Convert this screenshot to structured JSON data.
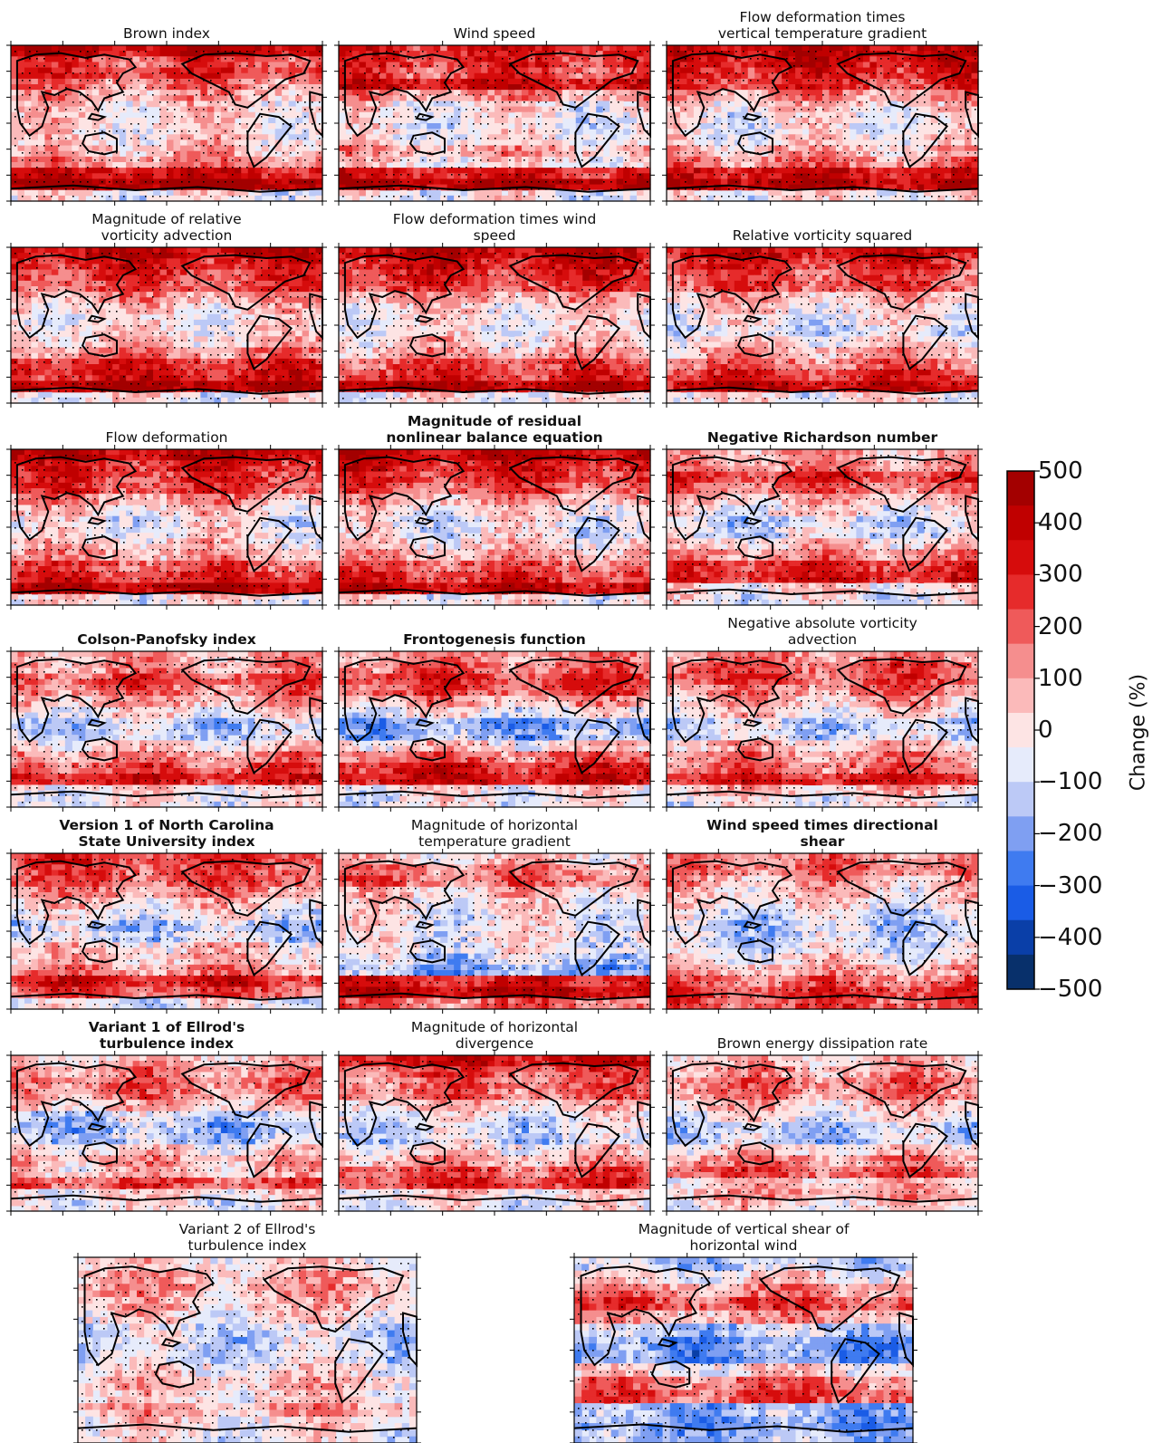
{
  "chart_data": {
    "type": "heatmap",
    "kind": "global map panels of percentage change",
    "colorbar": {
      "label": "Change (%)",
      "ticks": [
        "500",
        "400",
        "300",
        "200",
        "100",
        "0",
        "−100",
        "−200",
        "−300",
        "−400",
        "−500"
      ],
      "range": [
        -500,
        500
      ],
      "colors": [
        "#08306b",
        "#0a3fa8",
        "#1a5ce6",
        "#3f7bf0",
        "#7f9ff2",
        "#bcc9f6",
        "#e6ebfb",
        "#fde4e4",
        "#fbbaba",
        "#f58e8e",
        "#ef5a5a",
        "#e62b2b",
        "#d60c0c",
        "#c00000",
        "#a30000"
      ]
    },
    "panels": [
      {
        "title_lines": [
          "Brown index"
        ],
        "bold": false,
        "profile": [
          2,
          1.2,
          1.4,
          0.9,
          0.6,
          0.3,
          0.2,
          0.2,
          0.3,
          0.5,
          0.8,
          1.8,
          2.4,
          0.1
        ]
      },
      {
        "title_lines": [
          "Wind speed"
        ],
        "bold": false,
        "profile": [
          1.6,
          1.4,
          1.2,
          1.8,
          0.7,
          0.1,
          0,
          0,
          0.1,
          0.6,
          0.2,
          1.6,
          2.2,
          0
        ]
      },
      {
        "title_lines": [
          "Flow deformation times",
          "vertical temperature gradient"
        ],
        "bold": false,
        "profile": [
          2,
          1.8,
          1.6,
          1.4,
          0.8,
          0.3,
          0.1,
          0,
          0.2,
          0.5,
          0.9,
          1.8,
          2.2,
          0.1
        ]
      },
      {
        "title_lines": [
          "Magnitude of relative",
          "vorticity advection"
        ],
        "bold": false,
        "profile": [
          2,
          1.6,
          1.4,
          1.2,
          0.7,
          0.3,
          0.1,
          0.2,
          0.4,
          0.8,
          1.5,
          1.6,
          2.2,
          0.1
        ]
      },
      {
        "title_lines": [
          "Flow deformation times wind",
          "speed"
        ],
        "bold": false,
        "profile": [
          2,
          1.7,
          1.5,
          1.3,
          0.7,
          0.2,
          0.1,
          0.1,
          0.3,
          0.6,
          1.2,
          1.4,
          2.2,
          0.1
        ]
      },
      {
        "title_lines": [
          "Relative vorticity squared"
        ],
        "bold": false,
        "profile": [
          1.8,
          1.5,
          1.2,
          1.2,
          0.5,
          0.2,
          0,
          -0.2,
          0.2,
          0.6,
          1.0,
          1.4,
          2.0,
          0.1
        ]
      },
      {
        "title_lines": [
          "Flow deformation"
        ],
        "bold": false,
        "profile": [
          2,
          1.6,
          1.4,
          1.3,
          0.7,
          0.3,
          0,
          0.1,
          0.3,
          0.6,
          1.2,
          1.5,
          2.2,
          0.1
        ]
      },
      {
        "title_lines": [
          "Magnitude of residual",
          "nonlinear balance equation"
        ],
        "bold": true,
        "profile": [
          2,
          1.6,
          1.4,
          1.2,
          0.6,
          0.2,
          0,
          0,
          0.3,
          0.6,
          1.1,
          1.4,
          2.0,
          0.1
        ]
      },
      {
        "title_lines": [
          "Negative Richardson number"
        ],
        "bold": true,
        "profile": [
          0.6,
          0.8,
          1.4,
          1.0,
          0.4,
          0.1,
          -0.3,
          -0.2,
          0.4,
          0.8,
          1.4,
          1.6,
          0.2,
          0
        ]
      },
      {
        "title_lines": [
          "Colson-Panofsky index"
        ],
        "bold": true,
        "profile": [
          0.6,
          0.7,
          1.2,
          1.0,
          0.6,
          0.1,
          -0.4,
          -0.3,
          0.3,
          0.8,
          1.2,
          1.6,
          0.1,
          0
        ]
      },
      {
        "title_lines": [
          "Frontogenesis function"
        ],
        "bold": true,
        "profile": [
          0.8,
          1.0,
          1.4,
          1.2,
          0.6,
          0,
          -0.8,
          -0.6,
          0.3,
          1.0,
          1.6,
          1.8,
          0.1,
          0
        ]
      },
      {
        "title_lines": [
          "Negative absolute vorticity",
          "advection"
        ],
        "bold": false,
        "profile": [
          0.8,
          1.2,
          1.2,
          0.8,
          0.5,
          0.2,
          -0.3,
          -0.2,
          0.4,
          0.8,
          1.0,
          1.6,
          0.4,
          0
        ]
      },
      {
        "title_lines": [
          "Version 1 of North Carolina",
          "State University index"
        ],
        "bold": true,
        "profile": [
          1.4,
          1.2,
          1.2,
          0.8,
          0.3,
          0,
          -0.4,
          -0.2,
          0.3,
          0.4,
          0.8,
          1.6,
          1.2,
          0
        ]
      },
      {
        "title_lines": [
          "Magnitude of horizontal",
          "temperature gradient"
        ],
        "bold": false,
        "profile": [
          0.3,
          0.8,
          1.0,
          0.4,
          0.1,
          0,
          0,
          0,
          0,
          -0.3,
          -0.6,
          1.6,
          2.0,
          1.0
        ]
      },
      {
        "title_lines": [
          "Wind speed times directional",
          "shear"
        ],
        "bold": true,
        "profile": [
          0.8,
          1.0,
          0.6,
          0.4,
          0.2,
          -0.2,
          -0.4,
          -0.3,
          -0.2,
          0.2,
          0.6,
          1.0,
          1.4,
          1.2
        ]
      },
      {
        "title_lines": [
          "Variant 1 of Ellrod's",
          "turbulence index"
        ],
        "bold": true,
        "profile": [
          0.4,
          0.8,
          1.0,
          0.8,
          0.4,
          -0.3,
          -0.6,
          -0.4,
          0.2,
          0.6,
          0.4,
          1.2,
          0.2,
          0
        ]
      },
      {
        "title_lines": [
          "Magnitude of horizontal",
          "divergence"
        ],
        "bold": false,
        "profile": [
          1.8,
          1.2,
          1.0,
          1.0,
          0.4,
          0,
          -0.2,
          -0.3,
          0.2,
          0.6,
          1.2,
          1.4,
          0.2,
          0
        ]
      },
      {
        "title_lines": [
          "Brown energy dissipation rate"
        ],
        "bold": false,
        "profile": [
          0.4,
          0.6,
          1.0,
          0.8,
          0.4,
          0,
          -0.4,
          -0.3,
          0.3,
          0.8,
          1.2,
          0.4,
          0.6,
          0.2
        ]
      },
      {
        "title_lines": [
          "Variant 2 of Ellrod's",
          "turbulence index"
        ],
        "bold": false,
        "profile": [
          0.2,
          0.5,
          0.6,
          0.4,
          0.2,
          -0.2,
          -0.3,
          -0.2,
          0.1,
          0.4,
          0.2,
          0.6,
          0.2,
          0
        ]
      },
      {
        "title_lines": [
          "Magnitude of vertical shear of",
          "horizontal wind"
        ],
        "bold": false,
        "profile": [
          -0.4,
          0.2,
          0.8,
          1.2,
          0.6,
          -0.4,
          -0.8,
          -0.8,
          0.2,
          1.0,
          1.2,
          -0.6,
          -0.8,
          -0.6
        ]
      }
    ]
  }
}
